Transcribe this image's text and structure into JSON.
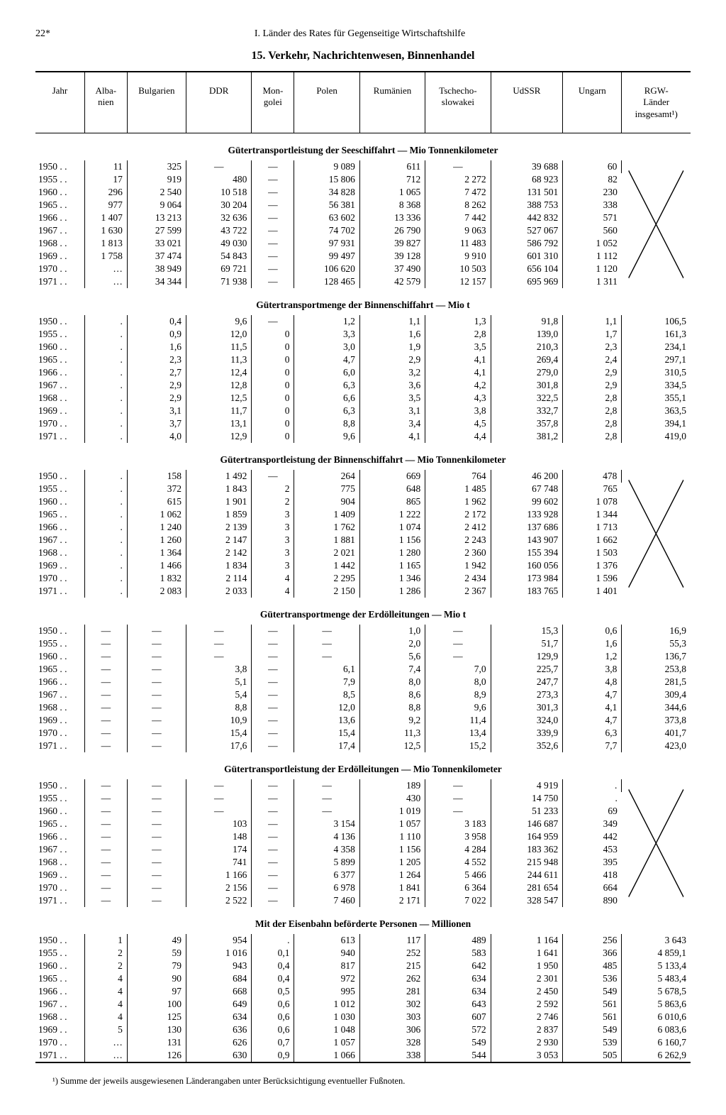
{
  "page_number": "22*",
  "chapter": "I. Länder des Rates für Gegenseitige Wirtschaftshilfe",
  "title": "15. Verkehr, Nachrichtenwesen, Binnenhandel",
  "columns": [
    "Jahr",
    "Alba-\nnien",
    "Bulgarien",
    "DDR",
    "Mon-\ngolei",
    "Polen",
    "Rumänien",
    "Tschecho-\nslowakei",
    "UdSSR",
    "Ungarn",
    "RGW-\nLänder\ninsgesamt¹)"
  ],
  "col_widths": [
    "7.5%",
    "6.5%",
    "9%",
    "10%",
    "6.5%",
    "10%",
    "10%",
    "10%",
    "11%",
    "9%",
    "10.5%"
  ],
  "years": [
    "1950",
    "1955",
    "1960",
    "1965",
    "1966",
    "1967",
    "1968",
    "1969",
    "1970",
    "1971"
  ],
  "sections": [
    {
      "title": "Gütertransportleistung der Seeschiffahrt — Mio Tonnenkilometer",
      "last_col_x": true,
      "rows": [
        [
          "11",
          "325",
          "—",
          "—",
          "9 089",
          "611",
          "—",
          "39 688",
          "60"
        ],
        [
          "17",
          "919",
          "480",
          "—",
          "15 806",
          "712",
          "2 272",
          "68 923",
          "82"
        ],
        [
          "296",
          "2 540",
          "10 518",
          "—",
          "34 828",
          "1 065",
          "7 472",
          "131 501",
          "230"
        ],
        [
          "977",
          "9 064",
          "30 204",
          "—",
          "56 381",
          "8 368",
          "8 262",
          "388 753",
          "338"
        ],
        [
          "1 407",
          "13 213",
          "32 636",
          "—",
          "63 602",
          "13 336",
          "7 442",
          "442 832",
          "571"
        ],
        [
          "1 630",
          "27 599",
          "43 722",
          "—",
          "74 702",
          "26 790",
          "9 063",
          "527 067",
          "560"
        ],
        [
          "1 813",
          "33 021",
          "49 030",
          "—",
          "97 931",
          "39 827",
          "11 483",
          "586 792",
          "1 052"
        ],
        [
          "1 758",
          "37 474",
          "54 843",
          "—",
          "99 497",
          "39 128",
          "9 910",
          "601 310",
          "1 112"
        ],
        [
          "…",
          "38 949",
          "69 721",
          "—",
          "106 620",
          "37 490",
          "10 503",
          "656 104",
          "1 120"
        ],
        [
          "…",
          "34 344",
          "71 938",
          "—",
          "128 465",
          "42 579",
          "12 157",
          "695 969",
          "1 311"
        ]
      ]
    },
    {
      "title": "Gütertransportmenge der Binnenschiffahrt — Mio t",
      "last_col_x": false,
      "rows": [
        [
          ".",
          "0,4",
          "9,6",
          "—",
          "1,2",
          "1,1",
          "1,3",
          "91,8",
          "1,1",
          "106,5"
        ],
        [
          ".",
          "0,9",
          "12,0",
          "0",
          "3,3",
          "1,6",
          "2,8",
          "139,0",
          "1,7",
          "161,3"
        ],
        [
          ".",
          "1,6",
          "11,5",
          "0",
          "3,0",
          "1,9",
          "3,5",
          "210,3",
          "2,3",
          "234,1"
        ],
        [
          ".",
          "2,3",
          "11,3",
          "0",
          "4,7",
          "2,9",
          "4,1",
          "269,4",
          "2,4",
          "297,1"
        ],
        [
          ".",
          "2,7",
          "12,4",
          "0",
          "6,0",
          "3,2",
          "4,1",
          "279,0",
          "2,9",
          "310,5"
        ],
        [
          ".",
          "2,9",
          "12,8",
          "0",
          "6,3",
          "3,6",
          "4,2",
          "301,8",
          "2,9",
          "334,5"
        ],
        [
          ".",
          "2,9",
          "12,5",
          "0",
          "6,6",
          "3,5",
          "4,3",
          "322,5",
          "2,8",
          "355,1"
        ],
        [
          ".",
          "3,1",
          "11,7",
          "0",
          "6,3",
          "3,1",
          "3,8",
          "332,7",
          "2,8",
          "363,5"
        ],
        [
          ".",
          "3,7",
          "13,1",
          "0",
          "8,8",
          "3,4",
          "4,5",
          "357,8",
          "2,8",
          "394,1"
        ],
        [
          ".",
          "4,0",
          "12,9",
          "0",
          "9,6",
          "4,1",
          "4,4",
          "381,2",
          "2,8",
          "419,0"
        ]
      ]
    },
    {
      "title": "Gütertransportleistung der Binnenschiffahrt — Mio Tonnenkilometer",
      "last_col_x": true,
      "rows": [
        [
          ".",
          "158",
          "1 492",
          "—",
          "264",
          "669",
          "764",
          "46 200",
          "478"
        ],
        [
          ".",
          "372",
          "1 843",
          "2",
          "775",
          "648",
          "1 485",
          "67 748",
          "765"
        ],
        [
          ".",
          "615",
          "1 901",
          "2",
          "904",
          "865",
          "1 962",
          "99 602",
          "1 078"
        ],
        [
          ".",
          "1 062",
          "1 859",
          "3",
          "1 409",
          "1 222",
          "2 172",
          "133 928",
          "1 344"
        ],
        [
          ".",
          "1 240",
          "2 139",
          "3",
          "1 762",
          "1 074",
          "2 412",
          "137 686",
          "1 713"
        ],
        [
          ".",
          "1 260",
          "2 147",
          "3",
          "1 881",
          "1 156",
          "2 243",
          "143 907",
          "1 662"
        ],
        [
          ".",
          "1 364",
          "2 142",
          "3",
          "2 021",
          "1 280",
          "2 360",
          "155 394",
          "1 503"
        ],
        [
          ".",
          "1 466",
          "1 834",
          "3",
          "1 442",
          "1 165",
          "1 942",
          "160 056",
          "1 376"
        ],
        [
          ".",
          "1 832",
          "2 114",
          "4",
          "2 295",
          "1 346",
          "2 434",
          "173 984",
          "1 596"
        ],
        [
          ".",
          "2 083",
          "2 033",
          "4",
          "2 150",
          "1 286",
          "2 367",
          "183 765",
          "1 401"
        ]
      ]
    },
    {
      "title": "Gütertransportmenge der Erdölleitungen — Mio t",
      "last_col_x": false,
      "rows": [
        [
          "—",
          "—",
          "—",
          "—",
          "—",
          "1,0",
          "—",
          "15,3",
          "0,6",
          "16,9"
        ],
        [
          "—",
          "—",
          "—",
          "—",
          "—",
          "2,0",
          "—",
          "51,7",
          "1,6",
          "55,3"
        ],
        [
          "—",
          "—",
          "—",
          "—",
          "—",
          "5,6",
          "—",
          "129,9",
          "1,2",
          "136,7"
        ],
        [
          "—",
          "—",
          "3,8",
          "—",
          "6,1",
          "7,4",
          "7,0",
          "225,7",
          "3,8",
          "253,8"
        ],
        [
          "—",
          "—",
          "5,1",
          "—",
          "7,9",
          "8,0",
          "8,0",
          "247,7",
          "4,8",
          "281,5"
        ],
        [
          "—",
          "—",
          "5,4",
          "—",
          "8,5",
          "8,6",
          "8,9",
          "273,3",
          "4,7",
          "309,4"
        ],
        [
          "—",
          "—",
          "8,8",
          "—",
          "12,0",
          "8,8",
          "9,6",
          "301,3",
          "4,1",
          "344,6"
        ],
        [
          "—",
          "—",
          "10,9",
          "—",
          "13,6",
          "9,2",
          "11,4",
          "324,0",
          "4,7",
          "373,8"
        ],
        [
          "—",
          "—",
          "15,4",
          "—",
          "15,4",
          "11,3",
          "13,4",
          "339,9",
          "6,3",
          "401,7"
        ],
        [
          "—",
          "—",
          "17,6",
          "—",
          "17,4",
          "12,5",
          "15,2",
          "352,6",
          "7,7",
          "423,0"
        ]
      ]
    },
    {
      "title": "Gütertransportleistung der Erdölleitungen — Mio Tonnenkilometer",
      "last_col_x": true,
      "rows": [
        [
          "—",
          "—",
          "—",
          "—",
          "—",
          "189",
          "—",
          "4 919",
          "."
        ],
        [
          "—",
          "—",
          "—",
          "—",
          "—",
          "430",
          "—",
          "14 750",
          "."
        ],
        [
          "—",
          "—",
          "—",
          "—",
          "—",
          "1 019",
          "—",
          "51 233",
          "69"
        ],
        [
          "—",
          "—",
          "103",
          "—",
          "3 154",
          "1 057",
          "3 183",
          "146 687",
          "349"
        ],
        [
          "—",
          "—",
          "148",
          "—",
          "4 136",
          "1 110",
          "3 958",
          "164 959",
          "442"
        ],
        [
          "—",
          "—",
          "174",
          "—",
          "4 358",
          "1 156",
          "4 284",
          "183 362",
          "453"
        ],
        [
          "—",
          "—",
          "741",
          "—",
          "5 899",
          "1 205",
          "4 552",
          "215 948",
          "395"
        ],
        [
          "—",
          "—",
          "1 166",
          "—",
          "6 377",
          "1 264",
          "5 466",
          "244 611",
          "418"
        ],
        [
          "—",
          "—",
          "2 156",
          "—",
          "6 978",
          "1 841",
          "6 364",
          "281 654",
          "664"
        ],
        [
          "—",
          "—",
          "2 522",
          "—",
          "7 460",
          "2 171",
          "7 022",
          "328 547",
          "890"
        ]
      ]
    },
    {
      "title": "Mit der Eisenbahn beförderte Personen — Millionen",
      "last_col_x": false,
      "rows": [
        [
          "1",
          "49",
          "954",
          ".",
          "613",
          "117",
          "489",
          "1 164",
          "256",
          "3 643"
        ],
        [
          "2",
          "59",
          "1 016",
          "0,1",
          "940",
          "252",
          "583",
          "1 641",
          "366",
          "4 859,1"
        ],
        [
          "2",
          "79",
          "943",
          "0,4",
          "817",
          "215",
          "642",
          "1 950",
          "485",
          "5 133,4"
        ],
        [
          "4",
          "90",
          "684",
          "0,4",
          "972",
          "262",
          "634",
          "2 301",
          "536",
          "5 483,4"
        ],
        [
          "4",
          "97",
          "668",
          "0,5",
          "995",
          "281",
          "634",
          "2 450",
          "549",
          "5 678,5"
        ],
        [
          "4",
          "100",
          "649",
          "0,6",
          "1 012",
          "302",
          "643",
          "2 592",
          "561",
          "5 863,6"
        ],
        [
          "4",
          "125",
          "634",
          "0,6",
          "1 030",
          "303",
          "607",
          "2 746",
          "561",
          "6 010,6"
        ],
        [
          "5",
          "130",
          "636",
          "0,6",
          "1 048",
          "306",
          "572",
          "2 837",
          "549",
          "6 083,6"
        ],
        [
          "…",
          "131",
          "626",
          "0,7",
          "1 057",
          "328",
          "549",
          "2 930",
          "539",
          "6 160,7"
        ],
        [
          "…",
          "126",
          "630",
          "0,9",
          "1 066",
          "338",
          "544",
          "3 053",
          "505",
          "6 262,9"
        ]
      ]
    }
  ],
  "footnote": "¹) Summe der jeweils ausgewiesenen Länderangaben unter Berücksichtigung eventueller Fußnoten."
}
